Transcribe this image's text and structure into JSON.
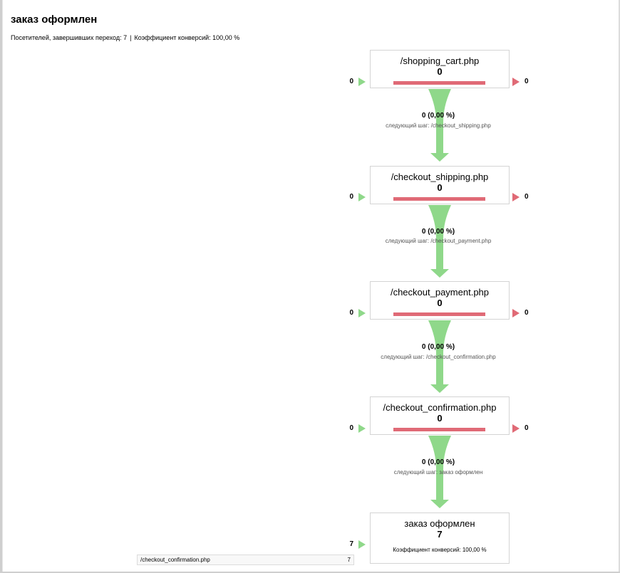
{
  "title": "заказ оформлен",
  "summary": {
    "visitors_text": "Посетителей, завершивших переход: 7",
    "separator": "|",
    "conversion_text": "Коэффициент конверсий: 100,00 %"
  },
  "steps": [
    {
      "name": "/shopping_cart.php",
      "value": "0",
      "entrances": "0",
      "exits": "0"
    },
    {
      "name": "/checkout_shipping.php",
      "value": "0",
      "entrances": "0",
      "exits": "0"
    },
    {
      "name": "/checkout_payment.php",
      "value": "0",
      "entrances": "0",
      "exits": "0"
    },
    {
      "name": "/checkout_confirmation.php",
      "value": "0",
      "entrances": "0",
      "exits": "0"
    }
  ],
  "connections": [
    {
      "value": "0 (0,00 %)",
      "next": "следующий шаг: /checkout_shipping.php"
    },
    {
      "value": "0 (0,00 %)",
      "next": "следующий шаг: /checkout_payment.php"
    },
    {
      "value": "0 (0,00 %)",
      "next": "следующий шаг: /checkout_confirmation.php"
    },
    {
      "value": "0 (0,00 %)",
      "next": "следующий шаг: заказ оформлен"
    }
  ],
  "goal": {
    "name": "заказ оформлен",
    "value": "7",
    "entrances": "7",
    "conversion_text": "Коэффициент конверсий: 100,00 %"
  },
  "entrance_sources": [
    {
      "url": "/checkout_confirmation.php",
      "count": "7"
    }
  ],
  "colors": {
    "flow_green": "#8fd88a",
    "exit_red": "#e06a76"
  },
  "icons": {
    "entrance_arrow": "triangle-right-green",
    "exit_arrow": "triangle-right-red",
    "flow_arrow": "funnel-arrow-down-green"
  }
}
